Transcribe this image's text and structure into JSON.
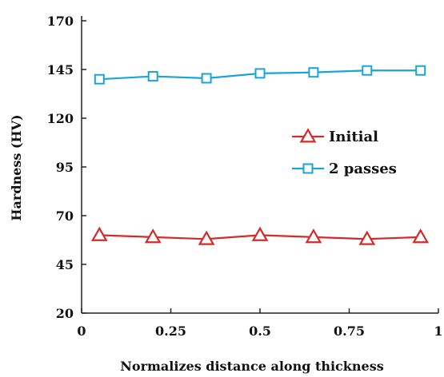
{
  "chart_data": {
    "type": "line",
    "title": "",
    "xlabel": "Normalizes distance along thickness",
    "ylabel": "Hardness (HV)",
    "xlim": [
      0,
      1
    ],
    "ylim": [
      20,
      170
    ],
    "x_ticks": [
      0,
      0.25,
      0.5,
      0.75,
      1
    ],
    "x_tick_labels": [
      "0",
      "0.25",
      "0.5",
      "0.75",
      "1"
    ],
    "y_ticks": [
      20,
      45,
      70,
      95,
      120,
      145,
      170
    ],
    "y_tick_labels": [
      "20",
      "45",
      "70",
      "95",
      "120",
      "145",
      "170"
    ],
    "grid": false,
    "legend_position": "right-middle",
    "series": [
      {
        "name": "Initial",
        "marker": "triangle",
        "color": "#d42a2a",
        "x": [
          0.05,
          0.2,
          0.35,
          0.5,
          0.65,
          0.8,
          0.95
        ],
        "values": [
          60,
          59,
          58,
          60,
          59,
          58,
          59
        ]
      },
      {
        "name": "2 passes",
        "marker": "square",
        "color": "#1aa3dc",
        "x": [
          0.05,
          0.2,
          0.35,
          0.5,
          0.65,
          0.8,
          0.95
        ],
        "values": [
          140,
          141.5,
          140.5,
          143,
          143.5,
          144.5,
          144.5
        ]
      }
    ]
  }
}
